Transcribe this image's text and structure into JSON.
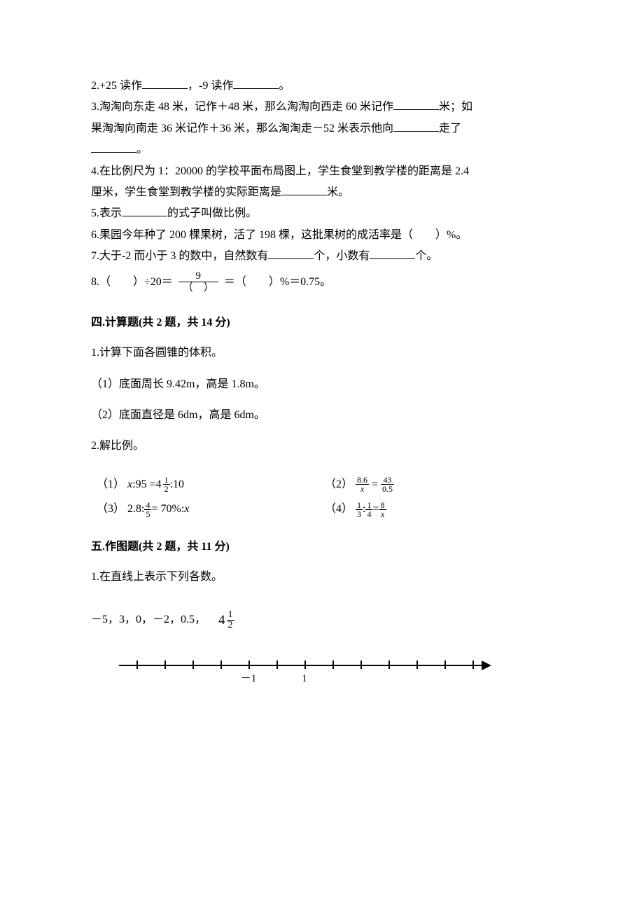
{
  "q2": {
    "text_a": "2.+25 读作",
    "text_b": "，-9 读作",
    "text_c": "。"
  },
  "q3": {
    "line1_a": "3.淘淘向东走 48 米，记作＋48 米，那么淘淘向西走 60 米记作",
    "line1_b": "米；如",
    "line2_a": "果淘淘向南走 36 米记作＋36 米，那么淘淘走－52 米表示他向",
    "line2_b": "走了",
    "line3_a": "。"
  },
  "q4": {
    "line1": "4.在比例尺为 1：20000 的学校平面布局图上，学生食堂到教学楼的距离是 2.4",
    "line2_a": "厘米，学生食堂到教学楼的实际距离是",
    "line2_b": "米。"
  },
  "q5": {
    "text_a": "5.表示",
    "text_b": "的式子叫做比例。"
  },
  "q6": {
    "text": "6.果园今年种了 200 棵果树，活了 198 棵，这批果树的成活率是（　　）%。"
  },
  "q7": {
    "text_a": "7.大于-2 而小于 3 的数中，自然数有",
    "text_b": "个，小数有",
    "text_c": "个。"
  },
  "q8": {
    "prefix": "8.（　　）÷20＝",
    "frac_num": "9",
    "frac_den": "（　）",
    "suffix": "＝（　　）%＝0.75。"
  },
  "section4": {
    "header": "四.计算题(共 2 题，共 14 分)",
    "q1": "1.计算下面各圆锥的体积。",
    "q1_1": "（1）底面周长 9.42m，高是 1.8m。",
    "q1_2": "（2）底面直径是 6dm，高是 6dm。",
    "q2": "2.解比例。",
    "eq1_label": "（1）",
    "eq1_lhs_pre": ":95 = ",
    "eq1_mixed_whole": "4",
    "eq1_mixed_num": "1",
    "eq1_mixed_den": "2",
    "eq1_rhs": ":10",
    "eq2_label": "（2）",
    "eq2_f1_num": "8.6",
    "eq2_f2_num": "43",
    "eq2_f2_den": "0.5",
    "eq3_label": "（3）",
    "eq3_lhs": "2.8:",
    "eq3_f_num": "4",
    "eq3_f_den": "5",
    "eq3_mid": " = 70%:",
    "eq4_label": "（4）",
    "eq4_f1_num": "1",
    "eq4_f1_den": "3",
    "eq4_colon": ":",
    "eq4_f2_num": "1",
    "eq4_f2_den": "4",
    "eq4_eq": " = ",
    "eq4_f3_num": "8"
  },
  "section5": {
    "header": "五.作图题(共 2 题，共 11 分)",
    "q1": "1.在直线上表示下列各数。",
    "nums_a": "－5，3，0，－2，0.5，",
    "mixed_whole": "4",
    "mixed_num": "1",
    "mixed_den": "2",
    "label_neg1": "－1",
    "label_pos1": "1"
  },
  "numberline": {
    "ticks": [
      25,
      65,
      105,
      145,
      185,
      225,
      265,
      305,
      345,
      385,
      425,
      465,
      505
    ],
    "label_neg1_x": 185,
    "label_pos1_x": 265
  }
}
